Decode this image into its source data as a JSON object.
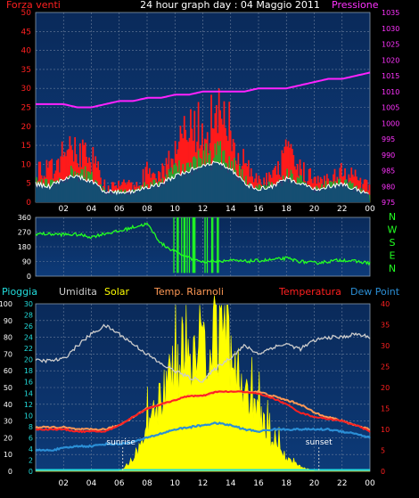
{
  "header": {
    "title": "24 hour graph day : 04 Maggio 2011",
    "left_label": "Forza venti",
    "right_label": "Pressione"
  },
  "colors": {
    "background": "#000000",
    "plot_bg_top": "#0a2a5a",
    "plot_bg_bottom": "#0d3a78",
    "grid": "#6a7e9c",
    "wind_gust": "#ff1a1a",
    "wind_avg": "#2ea02e",
    "wind_line": "#ffffff",
    "wind_fill": "#10407e",
    "pressure": "#ff22ff",
    "direction": "#22ff22",
    "rain": "#22dddd",
    "humidity": "#cccccc",
    "solar": "#ffff00",
    "temperature": "#ff2020",
    "apparent_temp": "#ff9955",
    "dew_point": "#2b8fd6",
    "sunrise_sunset": "#cccccc"
  },
  "chart_data": [
    {
      "type": "area",
      "name": "wind",
      "title": "24 hour graph day : 04 Maggio 2011",
      "ylabel": "Forza venti",
      "y2label": "Pressione",
      "ylim": [
        0,
        50
      ],
      "y2lim": [
        975,
        1035
      ],
      "grid": true,
      "x": [
        "00:00",
        "01:00",
        "02:00",
        "03:00",
        "04:00",
        "05:00",
        "06:00",
        "07:00",
        "08:00",
        "09:00",
        "10:00",
        "11:00",
        "12:00",
        "13:00",
        "14:00",
        "15:00",
        "16:00",
        "17:00",
        "18:00",
        "19:00",
        "20:00",
        "21:00",
        "22:00",
        "23:00",
        "24:00"
      ],
      "series": [
        {
          "name": "gust",
          "values": [
            10,
            9,
            14,
            16,
            13,
            4,
            5,
            5,
            9,
            9,
            16,
            20,
            22,
            25,
            21,
            10,
            6,
            7,
            14,
            9,
            7,
            8,
            9,
            7,
            4
          ]
        },
        {
          "name": "average",
          "values": [
            6,
            5,
            8,
            9,
            7,
            3,
            3,
            3,
            5,
            6,
            9,
            11,
            13,
            14,
            12,
            6,
            4,
            5,
            8,
            6,
            4,
            5,
            6,
            4,
            2
          ]
        },
        {
          "name": "pressure",
          "values": [
            1006,
            1006,
            1006,
            1005,
            1005,
            1006,
            1007,
            1007,
            1008,
            1008,
            1009,
            1009,
            1010,
            1010,
            1010,
            1010,
            1011,
            1011,
            1011,
            1012,
            1013,
            1014,
            1014,
            1015,
            1016
          ]
        }
      ]
    },
    {
      "type": "line",
      "name": "wind_direction",
      "ylim": [
        0,
        360
      ],
      "yticks": [
        "0",
        "90",
        "180",
        "270",
        "360"
      ],
      "right_labels": [
        "N",
        "W",
        "S",
        "E",
        "N"
      ],
      "grid": true,
      "x": [
        "00:00",
        "01:00",
        "02:00",
        "03:00",
        "04:00",
        "05:00",
        "06:00",
        "07:00",
        "08:00",
        "09:00",
        "10:00",
        "11:00",
        "12:00",
        "13:00",
        "14:00",
        "15:00",
        "16:00",
        "17:00",
        "18:00",
        "19:00",
        "20:00",
        "21:00",
        "22:00",
        "23:00",
        "24:00"
      ],
      "series": [
        {
          "name": "direction",
          "values": [
            260,
            258,
            255,
            255,
            240,
            262,
            275,
            300,
            320,
            200,
            150,
            110,
            90,
            95,
            95,
            90,
            95,
            100,
            110,
            90,
            80,
            90,
            100,
            90,
            80
          ]
        }
      ]
    },
    {
      "type": "line",
      "name": "conditions",
      "legend": [
        "Pioggia",
        "Umidita",
        "Solar",
        "Temp. Riarnoli",
        "Temperatura",
        "Dew Point"
      ],
      "ylim_rain": [
        0,
        30
      ],
      "ylim_humidity": [
        0,
        100
      ],
      "ylim_temp": [
        0,
        40
      ],
      "sunrise_label": "sunrise",
      "sunset_label": "sunset",
      "sunrise_time": "06:15",
      "sunset_time": "20:20",
      "grid": true,
      "x": [
        "00:00",
        "01:00",
        "02:00",
        "03:00",
        "04:00",
        "05:00",
        "06:00",
        "07:00",
        "08:00",
        "09:00",
        "10:00",
        "11:00",
        "12:00",
        "13:00",
        "14:00",
        "15:00",
        "16:00",
        "17:00",
        "18:00",
        "19:00",
        "20:00",
        "21:00",
        "22:00",
        "23:00",
        "24:00"
      ],
      "series": [
        {
          "name": "Umidita",
          "values": [
            66,
            66,
            67,
            75,
            82,
            87,
            82,
            76,
            70,
            64,
            60,
            56,
            54,
            62,
            68,
            75,
            70,
            74,
            76,
            73,
            78,
            80,
            80,
            82,
            80
          ]
        },
        {
          "name": "Solar",
          "values": [
            0,
            0,
            0,
            0,
            0,
            0,
            0,
            2,
            8,
            16,
            22,
            25,
            27,
            29,
            26,
            17,
            12,
            6,
            3,
            1,
            0,
            0,
            0,
            0,
            0
          ]
        },
        {
          "name": "Temp. Riarnoli",
          "values": [
            10.5,
            10.5,
            10.5,
            10,
            10,
            10,
            11,
            13,
            15,
            16,
            17,
            18,
            18,
            19,
            19,
            19,
            19,
            18,
            17,
            16,
            14,
            13,
            12,
            11,
            10
          ]
        },
        {
          "name": "Temperatura",
          "values": [
            10,
            10,
            10,
            9.5,
            9.5,
            9.5,
            11,
            13,
            15,
            16,
            17,
            18,
            18,
            19,
            19,
            19,
            18.5,
            17.5,
            16,
            14,
            13,
            12.5,
            12,
            11,
            9.5
          ]
        },
        {
          "name": "Dew Point",
          "values": [
            5,
            5,
            5.5,
            6,
            6,
            6.5,
            6.5,
            7,
            8,
            9,
            10,
            10.5,
            11,
            11.5,
            11,
            10,
            9.5,
            10,
            10,
            10,
            10,
            10,
            9.5,
            9,
            8
          ]
        },
        {
          "name": "Pioggia",
          "values": [
            0,
            0,
            0,
            0,
            0,
            0,
            0,
            0,
            0,
            0,
            0,
            0,
            0,
            0,
            0,
            0,
            0,
            0,
            0,
            0,
            0,
            0,
            0,
            0,
            0
          ]
        }
      ],
      "left_ticks_rain": [
        0,
        2,
        4,
        6,
        8,
        10,
        12,
        14,
        16,
        18,
        20,
        22,
        24,
        26,
        28,
        30
      ],
      "left_ticks_humidity": [
        0,
        10,
        20,
        30,
        40,
        50,
        60,
        70,
        80,
        90,
        100
      ],
      "right_ticks_temp": [
        0,
        5,
        10,
        15,
        20,
        25,
        30,
        35,
        40
      ]
    }
  ],
  "x_tick_labels": [
    "02",
    "04",
    "06",
    "08",
    "10",
    "12",
    "14",
    "16",
    "18",
    "20",
    "22",
    "00"
  ],
  "wind_left_ticks": [
    "0",
    "5",
    "10",
    "15",
    "20",
    "25",
    "30",
    "35",
    "40",
    "45",
    "50"
  ],
  "pressure_right_ticks": [
    "975",
    "980",
    "985",
    "990",
    "995",
    "1000",
    "1005",
    "1010",
    "1015",
    "1020",
    "1025",
    "1030",
    "1035"
  ]
}
